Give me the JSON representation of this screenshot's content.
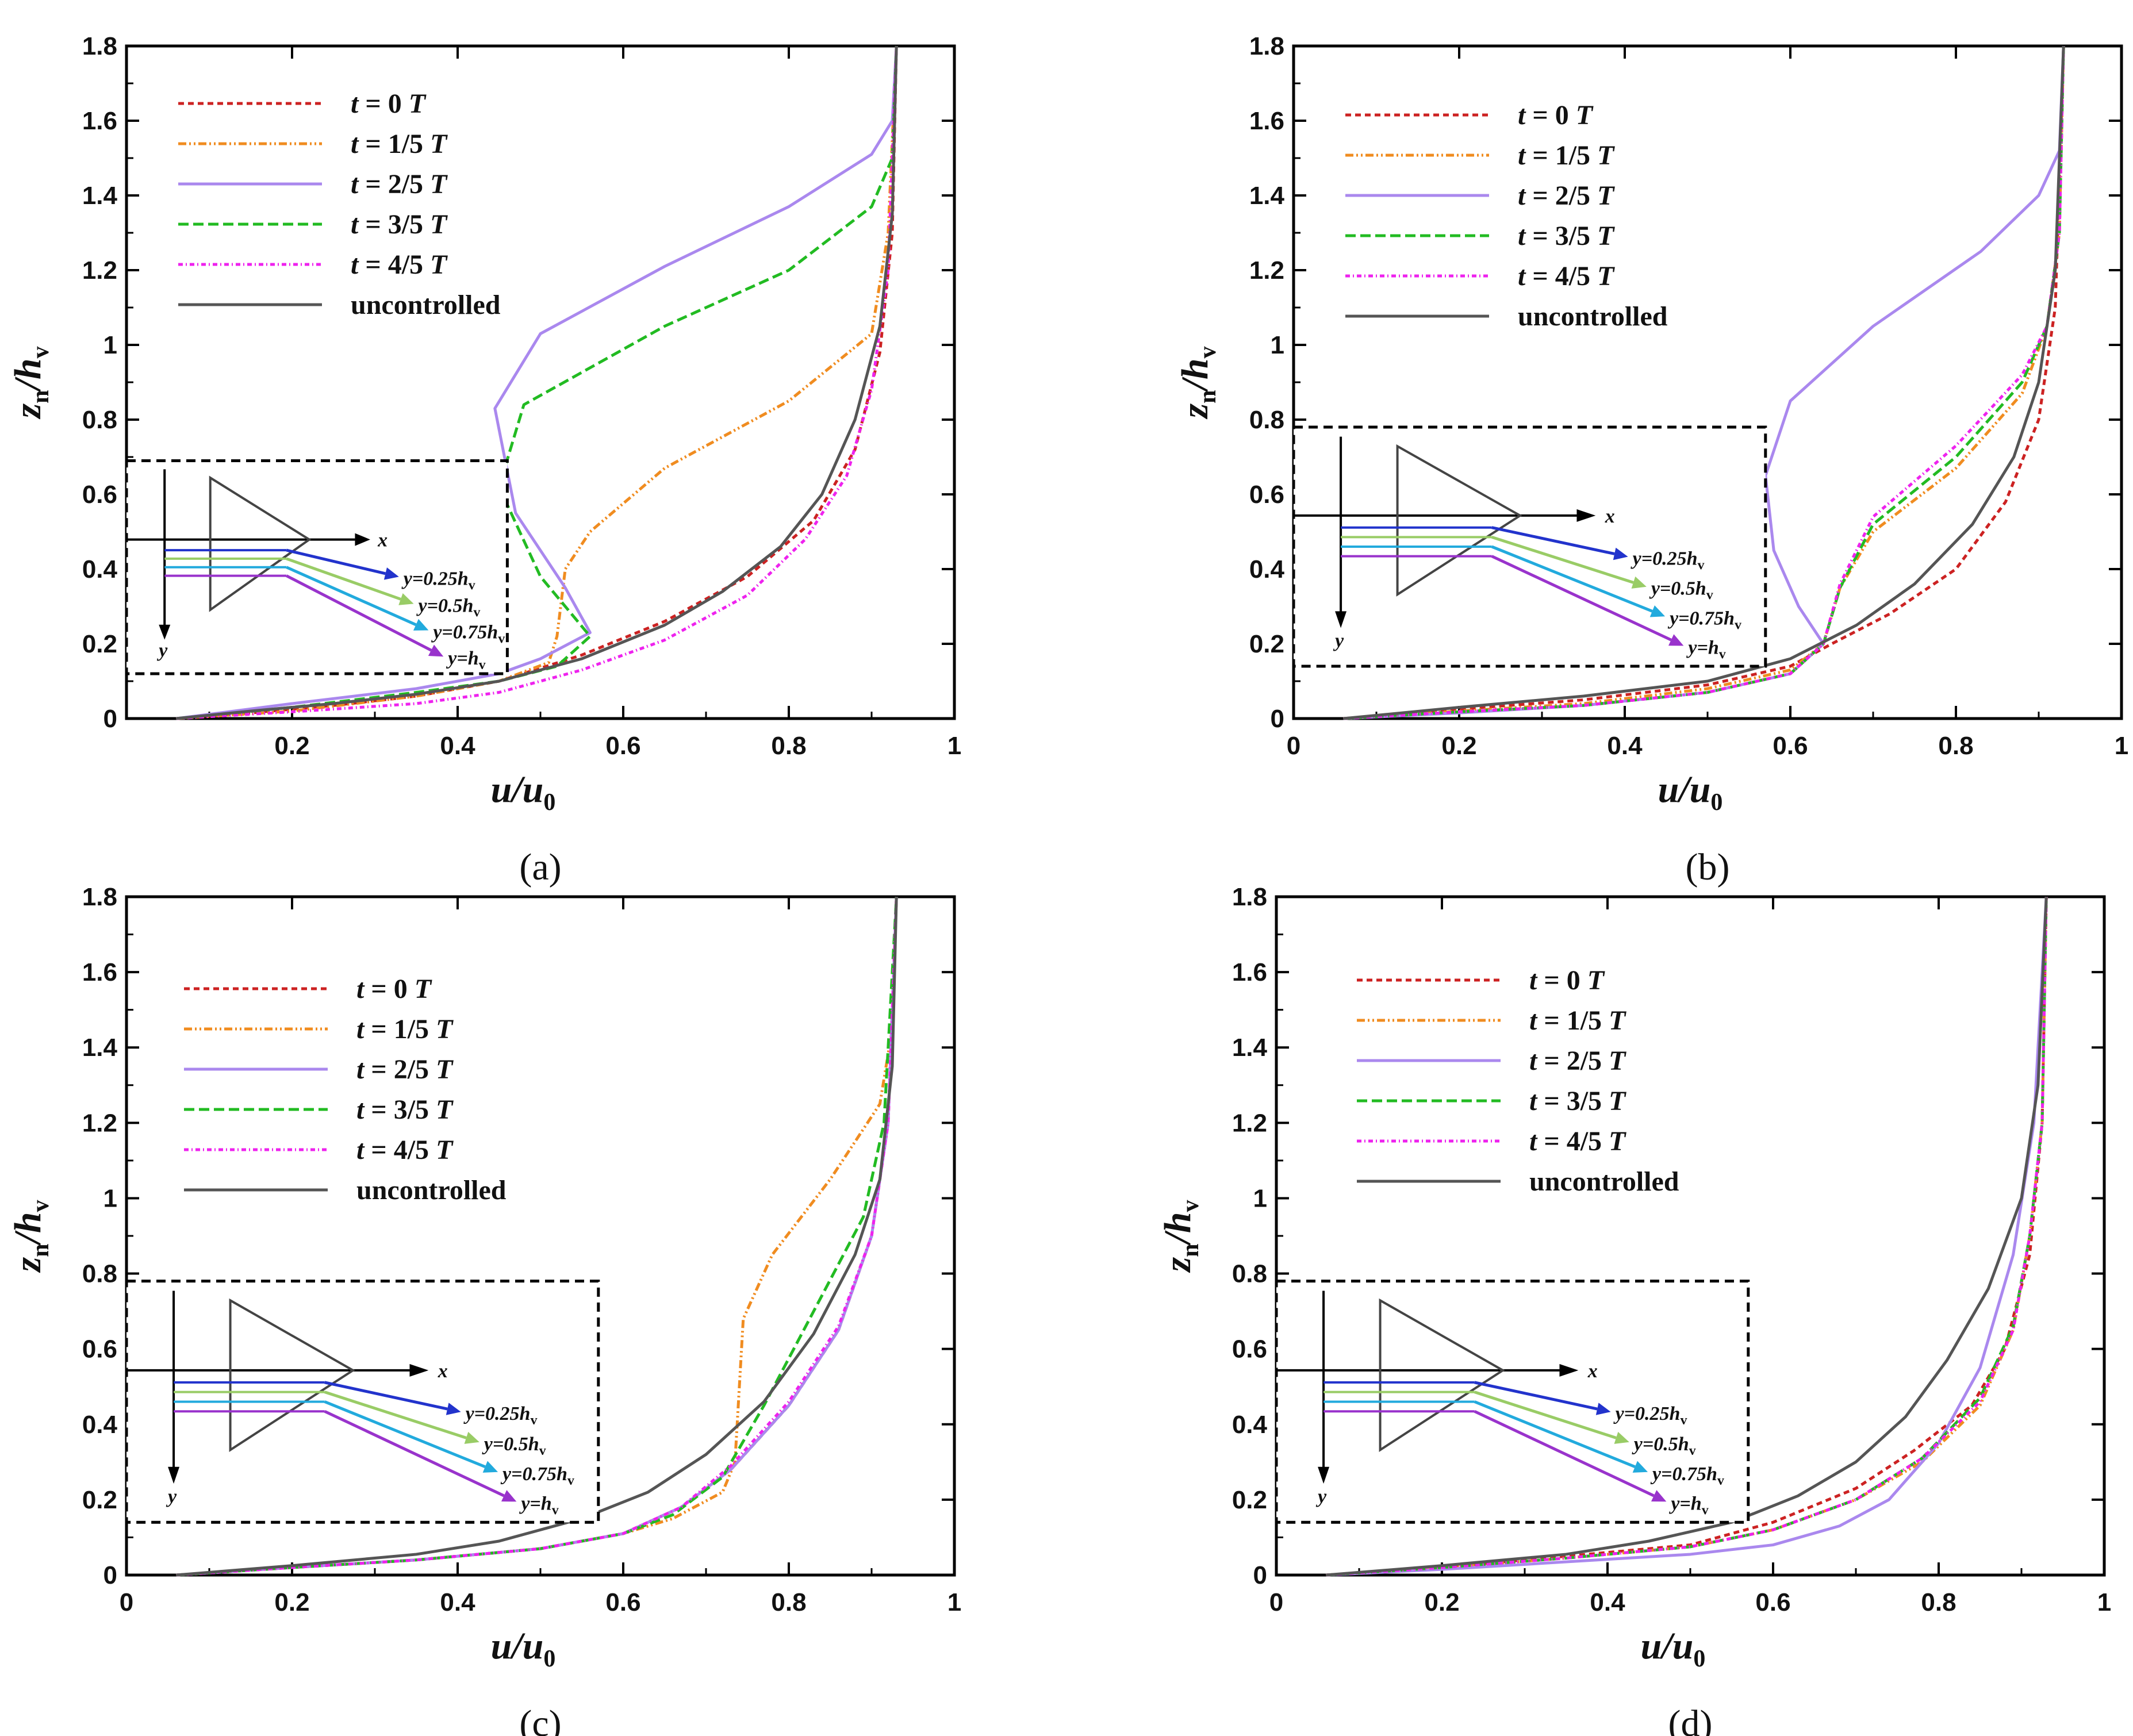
{
  "figure": {
    "panels": [
      "a",
      "b",
      "c",
      "d"
    ]
  },
  "colors": {
    "t0": "#cc2222",
    "t1": "#f08c20",
    "t2": "#aa88ee",
    "t3": "#22bb22",
    "t4": "#ee22ee",
    "unc": "#555555",
    "arrow1": "#2233cc",
    "arrow2": "#99cc66",
    "arrow3": "#22aadd",
    "arrow4": "#9933cc"
  },
  "inset": {
    "x_label": "x",
    "y_label": "y",
    "lines": [
      "y=0.25h",
      "y=0.5h",
      "y=0.75h",
      "y=h"
    ],
    "subscript": "v"
  },
  "chart_data": [
    {
      "type": "line",
      "panel": "a",
      "caption": "(a)",
      "xlabel": "u/u0",
      "ylabel": "zn/hv",
      "xlim": [
        0,
        1
      ],
      "ylim": [
        0,
        1.8
      ],
      "xticks": [
        "0.2",
        "0.4",
        "0.6",
        "0.8",
        "1"
      ],
      "yticks": [
        "0",
        "0.2",
        "0.4",
        "0.6",
        "0.8",
        "1",
        "1.2",
        "1.4",
        "1.6",
        "1.8"
      ],
      "legend_position": "top-left",
      "inset_box": {
        "x0": 0.0,
        "x1": 0.46,
        "y0": 0.12,
        "y1": 0.69
      },
      "series": [
        {
          "name": "t = 0 T",
          "style": "t0",
          "dash": "10,7",
          "x": [
            0.06,
            0.15,
            0.25,
            0.35,
            0.45,
            0.55,
            0.65,
            0.75,
            0.83,
            0.88,
            0.91,
            0.925,
            0.93
          ],
          "y": [
            0,
            0.015,
            0.035,
            0.06,
            0.1,
            0.17,
            0.26,
            0.38,
            0.53,
            0.72,
            0.98,
            1.3,
            1.8
          ]
        },
        {
          "name": "t = 1/5 T",
          "style": "t1",
          "dash": "14,5,3,5,3,5",
          "x": [
            0.06,
            0.2,
            0.35,
            0.45,
            0.51,
            0.52,
            0.53,
            0.56,
            0.65,
            0.8,
            0.9,
            0.92,
            0.93
          ],
          "y": [
            0,
            0.02,
            0.06,
            0.1,
            0.15,
            0.22,
            0.4,
            0.5,
            0.67,
            0.85,
            1.03,
            1.3,
            1.8
          ]
        },
        {
          "name": "t = 2/5 T",
          "style": "t2",
          "dash": "",
          "x": [
            0.06,
            0.2,
            0.35,
            0.45,
            0.5,
            0.56,
            0.53,
            0.47,
            0.445,
            0.5,
            0.65,
            0.8,
            0.9,
            0.925,
            0.93
          ],
          "y": [
            0,
            0.04,
            0.08,
            0.12,
            0.16,
            0.23,
            0.35,
            0.55,
            0.83,
            1.03,
            1.21,
            1.37,
            1.51,
            1.6,
            1.8
          ]
        },
        {
          "name": "t = 3/5 T",
          "style": "t3",
          "dash": "18,8",
          "x": [
            0.06,
            0.2,
            0.35,
            0.45,
            0.52,
            0.56,
            0.5,
            0.45,
            0.48,
            0.65,
            0.8,
            0.9,
            0.925,
            0.93
          ],
          "y": [
            0,
            0.03,
            0.07,
            0.1,
            0.14,
            0.22,
            0.38,
            0.62,
            0.84,
            1.05,
            1.2,
            1.37,
            1.5,
            1.8
          ]
        },
        {
          "name": "t = 4/5 T",
          "style": "t4",
          "dash": "8,5,2,5",
          "x": [
            0.06,
            0.2,
            0.35,
            0.45,
            0.55,
            0.65,
            0.75,
            0.82,
            0.87,
            0.9,
            0.92,
            0.93
          ],
          "y": [
            0,
            0.018,
            0.04,
            0.07,
            0.13,
            0.21,
            0.33,
            0.48,
            0.65,
            0.88,
            1.2,
            1.8
          ]
        },
        {
          "name": "uncontrolled",
          "style": "unc",
          "dash": "",
          "x": [
            0.06,
            0.15,
            0.25,
            0.35,
            0.45,
            0.55,
            0.65,
            0.72,
            0.79,
            0.84,
            0.88,
            0.91,
            0.925,
            0.93
          ],
          "y": [
            0,
            0.02,
            0.04,
            0.065,
            0.1,
            0.16,
            0.25,
            0.34,
            0.46,
            0.6,
            0.8,
            1.05,
            1.35,
            1.8
          ]
        }
      ]
    },
    {
      "type": "line",
      "panel": "b",
      "caption": "(b)",
      "xlabel": "u/u0",
      "ylabel": "zn/hv",
      "xlim": [
        0,
        1
      ],
      "ylim": [
        0,
        1.8
      ],
      "xticks": [
        "0",
        "0.2",
        "0.4",
        "0.6",
        "0.8",
        "1"
      ],
      "yticks": [
        "0",
        "0.2",
        "0.4",
        "0.6",
        "0.8",
        "1",
        "1.2",
        "1.4",
        "1.6",
        "1.8"
      ],
      "legend_position": "top-left",
      "inset_box": {
        "x0": 0.0,
        "x1": 0.57,
        "y0": 0.14,
        "y1": 0.78
      },
      "series": [
        {
          "name": "t = 0 T",
          "style": "t0",
          "dash": "10,7",
          "x": [
            0.06,
            0.2,
            0.35,
            0.5,
            0.6,
            0.65,
            0.72,
            0.8,
            0.86,
            0.9,
            0.92,
            0.93
          ],
          "y": [
            0,
            0.025,
            0.05,
            0.09,
            0.14,
            0.2,
            0.28,
            0.4,
            0.58,
            0.8,
            1.1,
            1.8
          ]
        },
        {
          "name": "t = 1/5 T",
          "style": "t1",
          "dash": "14,5,3,5,3,5",
          "x": [
            0.06,
            0.2,
            0.35,
            0.5,
            0.6,
            0.64,
            0.66,
            0.7,
            0.8,
            0.88,
            0.91,
            0.925,
            0.93
          ],
          "y": [
            0,
            0.02,
            0.04,
            0.08,
            0.13,
            0.2,
            0.35,
            0.5,
            0.67,
            0.87,
            1.05,
            1.3,
            1.8
          ]
        },
        {
          "name": "t = 2/5 T",
          "style": "t2",
          "dash": "",
          "x": [
            0.06,
            0.2,
            0.35,
            0.5,
            0.6,
            0.64,
            0.61,
            0.58,
            0.57,
            0.6,
            0.7,
            0.83,
            0.9,
            0.925,
            0.93
          ],
          "y": [
            0,
            0.015,
            0.035,
            0.07,
            0.12,
            0.2,
            0.3,
            0.45,
            0.65,
            0.85,
            1.05,
            1.25,
            1.4,
            1.52,
            1.8
          ]
        },
        {
          "name": "t = 3/5 T",
          "style": "t3",
          "dash": "18,8",
          "x": [
            0.06,
            0.2,
            0.35,
            0.5,
            0.6,
            0.64,
            0.66,
            0.7,
            0.8,
            0.88,
            0.91,
            0.925,
            0.93
          ],
          "y": [
            0,
            0.018,
            0.035,
            0.07,
            0.12,
            0.2,
            0.35,
            0.52,
            0.7,
            0.9,
            1.05,
            1.3,
            1.8
          ]
        },
        {
          "name": "t = 4/5 T",
          "style": "t4",
          "dash": "8,5,2,5",
          "x": [
            0.06,
            0.2,
            0.35,
            0.5,
            0.6,
            0.64,
            0.66,
            0.7,
            0.8,
            0.88,
            0.91,
            0.925,
            0.93
          ],
          "y": [
            0,
            0.018,
            0.035,
            0.07,
            0.12,
            0.2,
            0.36,
            0.54,
            0.73,
            0.92,
            1.05,
            1.3,
            1.8
          ]
        },
        {
          "name": "uncontrolled",
          "style": "unc",
          "dash": "",
          "x": [
            0.06,
            0.2,
            0.35,
            0.5,
            0.6,
            0.68,
            0.75,
            0.82,
            0.87,
            0.9,
            0.92,
            0.93
          ],
          "y": [
            0,
            0.03,
            0.06,
            0.1,
            0.16,
            0.25,
            0.36,
            0.52,
            0.7,
            0.9,
            1.2,
            1.8
          ]
        }
      ]
    },
    {
      "type": "line",
      "panel": "c",
      "caption": "(c)",
      "xlabel": "u/u0",
      "ylabel": "zn/hv",
      "xlim": [
        0,
        1
      ],
      "ylim": [
        0,
        1.8
      ],
      "xticks": [
        "0",
        "0.2",
        "0.4",
        "0.6",
        "0.8",
        "1"
      ],
      "yticks": [
        "0",
        "0.2",
        "0.4",
        "0.6",
        "0.8",
        "1",
        "1.2",
        "1.4",
        "1.6",
        "1.8"
      ],
      "legend_position": "top-left",
      "inset_box": {
        "x0": 0.0,
        "x1": 0.57,
        "y0": 0.14,
        "y1": 0.78
      },
      "series": [
        {
          "name": "t = 0 T",
          "style": "t0",
          "dash": "10,7",
          "x": [
            0.06,
            0.2,
            0.35,
            0.5,
            0.6,
            0.67,
            0.73,
            0.8,
            0.86,
            0.9,
            0.92,
            0.93
          ],
          "y": [
            0,
            0.02,
            0.04,
            0.07,
            0.11,
            0.18,
            0.28,
            0.45,
            0.65,
            0.9,
            1.2,
            1.8
          ]
        },
        {
          "name": "t = 1/5 T",
          "style": "t1",
          "dash": "14,5,3,5,3,5",
          "x": [
            0.06,
            0.2,
            0.35,
            0.5,
            0.6,
            0.66,
            0.72,
            0.735,
            0.745,
            0.78,
            0.85,
            0.91,
            0.925,
            0.93
          ],
          "y": [
            0,
            0.02,
            0.04,
            0.07,
            0.11,
            0.15,
            0.22,
            0.3,
            0.68,
            0.85,
            1.05,
            1.25,
            1.45,
            1.8
          ]
        },
        {
          "name": "t = 2/5 T",
          "style": "t2",
          "dash": "",
          "x": [
            0.06,
            0.2,
            0.35,
            0.5,
            0.6,
            0.67,
            0.73,
            0.8,
            0.86,
            0.9,
            0.92,
            0.93
          ],
          "y": [
            0,
            0.02,
            0.04,
            0.07,
            0.11,
            0.18,
            0.28,
            0.45,
            0.65,
            0.9,
            1.2,
            1.8
          ]
        },
        {
          "name": "t = 3/5 T",
          "style": "t3",
          "dash": "18,8",
          "x": [
            0.06,
            0.2,
            0.35,
            0.5,
            0.6,
            0.66,
            0.72,
            0.77,
            0.83,
            0.89,
            0.915,
            0.93
          ],
          "y": [
            0,
            0.02,
            0.04,
            0.07,
            0.11,
            0.16,
            0.26,
            0.45,
            0.7,
            0.95,
            1.2,
            1.8
          ]
        },
        {
          "name": "t = 4/5 T",
          "style": "t4",
          "dash": "8,5,2,5",
          "x": [
            0.06,
            0.2,
            0.35,
            0.5,
            0.6,
            0.67,
            0.73,
            0.8,
            0.86,
            0.9,
            0.92,
            0.93
          ],
          "y": [
            0,
            0.02,
            0.04,
            0.07,
            0.11,
            0.18,
            0.29,
            0.46,
            0.66,
            0.9,
            1.2,
            1.8
          ]
        },
        {
          "name": "uncontrolled",
          "style": "unc",
          "dash": "",
          "x": [
            0.06,
            0.2,
            0.35,
            0.45,
            0.55,
            0.63,
            0.7,
            0.77,
            0.83,
            0.88,
            0.91,
            0.925,
            0.93
          ],
          "y": [
            0,
            0.025,
            0.055,
            0.09,
            0.15,
            0.22,
            0.32,
            0.46,
            0.64,
            0.85,
            1.05,
            1.35,
            1.8
          ]
        }
      ]
    },
    {
      "type": "line",
      "panel": "d",
      "caption": "(d)",
      "xlabel": "u/u0",
      "ylabel": "zn/hv",
      "xlim": [
        0,
        1
      ],
      "ylim": [
        0,
        1.8
      ],
      "xticks": [
        "0",
        "0.2",
        "0.4",
        "0.6",
        "0.8",
        "1"
      ],
      "yticks": [
        "0",
        "0.2",
        "0.4",
        "0.6",
        "0.8",
        "1",
        "1.2",
        "1.4",
        "1.6",
        "1.8"
      ],
      "legend_position": "top-left",
      "inset_box": {
        "x0": 0.0,
        "x1": 0.57,
        "y0": 0.14,
        "y1": 0.78
      },
      "series": [
        {
          "name": "t = 0 T",
          "style": "t0",
          "dash": "10,7",
          "x": [
            0.06,
            0.2,
            0.35,
            0.5,
            0.6,
            0.7,
            0.77,
            0.84,
            0.88,
            0.91,
            0.925,
            0.93
          ],
          "y": [
            0,
            0.02,
            0.05,
            0.08,
            0.14,
            0.23,
            0.33,
            0.45,
            0.6,
            0.85,
            1.2,
            1.8
          ]
        },
        {
          "name": "t = 1/5 T",
          "style": "t1",
          "dash": "14,5,3,5,3,5",
          "x": [
            0.06,
            0.2,
            0.35,
            0.5,
            0.6,
            0.7,
            0.78,
            0.85,
            0.89,
            0.91,
            0.925,
            0.93
          ],
          "y": [
            0,
            0.02,
            0.045,
            0.075,
            0.12,
            0.2,
            0.3,
            0.45,
            0.65,
            0.9,
            1.2,
            1.8
          ]
        },
        {
          "name": "t = 2/5 T",
          "style": "t2",
          "dash": "",
          "x": [
            0.06,
            0.2,
            0.35,
            0.5,
            0.6,
            0.68,
            0.74,
            0.8,
            0.85,
            0.89,
            0.915,
            0.93
          ],
          "y": [
            0,
            0.015,
            0.035,
            0.055,
            0.08,
            0.13,
            0.2,
            0.35,
            0.55,
            0.85,
            1.2,
            1.8
          ]
        },
        {
          "name": "t = 3/5 T",
          "style": "t3",
          "dash": "18,8",
          "x": [
            0.06,
            0.2,
            0.35,
            0.5,
            0.6,
            0.7,
            0.78,
            0.85,
            0.89,
            0.91,
            0.925,
            0.93
          ],
          "y": [
            0,
            0.02,
            0.045,
            0.075,
            0.12,
            0.2,
            0.31,
            0.47,
            0.66,
            0.9,
            1.2,
            1.8
          ]
        },
        {
          "name": "t = 4/5 T",
          "style": "t4",
          "dash": "8,5,2,5",
          "x": [
            0.06,
            0.2,
            0.35,
            0.5,
            0.6,
            0.7,
            0.78,
            0.85,
            0.89,
            0.91,
            0.925,
            0.93
          ],
          "y": [
            0,
            0.02,
            0.045,
            0.075,
            0.12,
            0.2,
            0.31,
            0.46,
            0.65,
            0.9,
            1.2,
            1.8
          ]
        },
        {
          "name": "uncontrolled",
          "style": "unc",
          "dash": "",
          "x": [
            0.06,
            0.2,
            0.35,
            0.45,
            0.55,
            0.63,
            0.7,
            0.76,
            0.81,
            0.86,
            0.9,
            0.92,
            0.93
          ],
          "y": [
            0,
            0.025,
            0.055,
            0.09,
            0.14,
            0.21,
            0.3,
            0.42,
            0.57,
            0.76,
            1.0,
            1.3,
            1.8
          ]
        }
      ]
    }
  ]
}
